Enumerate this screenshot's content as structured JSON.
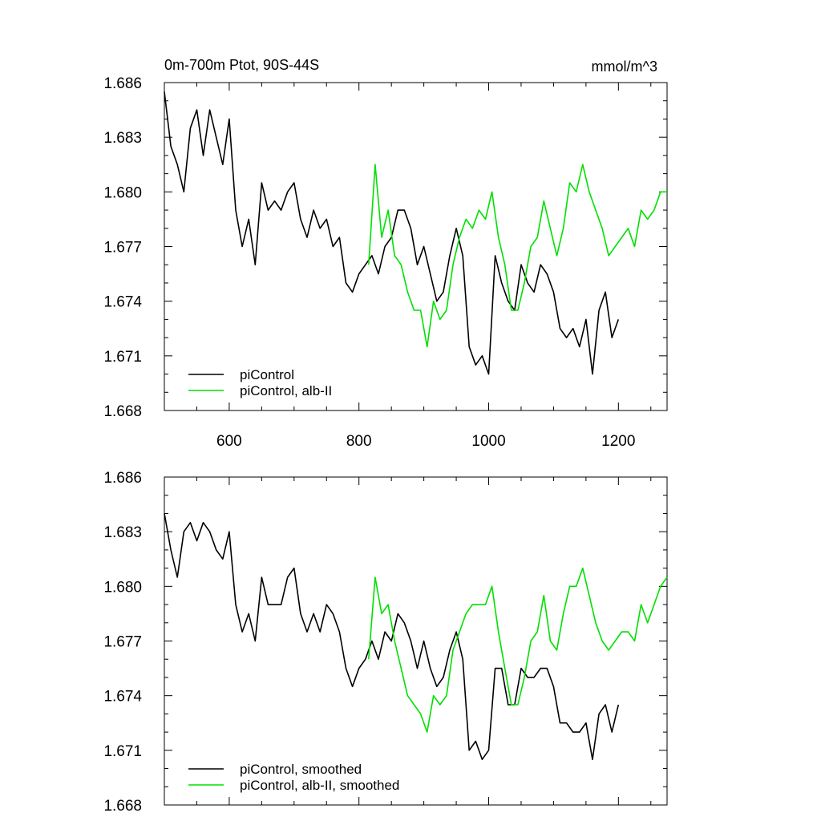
{
  "chart_data": [
    {
      "type": "line",
      "title": "0m-700m Ptot, 90S-44S",
      "units": "mmol/m^3",
      "xlim": [
        500,
        1275
      ],
      "ylim": [
        1.668,
        1.686
      ],
      "xticks": [
        600,
        800,
        1000,
        1200
      ],
      "yticks": [
        "1.668",
        "1.671",
        "1.674",
        "1.677",
        "1.680",
        "1.683",
        "1.686"
      ],
      "legend_position": "bottom-left",
      "series": [
        {
          "name": "piControl",
          "color": "#000000",
          "x": [
            500,
            510,
            520,
            530,
            540,
            550,
            560,
            570,
            580,
            590,
            600,
            610,
            620,
            630,
            640,
            650,
            660,
            670,
            680,
            690,
            700,
            710,
            720,
            730,
            740,
            750,
            760,
            770,
            780,
            790,
            800,
            810,
            820,
            830,
            840,
            850,
            860,
            870,
            880,
            890,
            900,
            910,
            920,
            930,
            940,
            950,
            960,
            970,
            980,
            990,
            1000,
            1010,
            1020,
            1030,
            1040,
            1050,
            1060,
            1070,
            1080,
            1090,
            1100,
            1110,
            1120,
            1130,
            1140,
            1150,
            1160,
            1170,
            1180,
            1190,
            1200
          ],
          "values": [
            1.6855,
            1.6825,
            1.6815,
            1.68,
            1.6835,
            1.6845,
            1.682,
            1.6845,
            1.683,
            1.6815,
            1.684,
            1.679,
            1.677,
            1.6785,
            1.676,
            1.6805,
            1.679,
            1.6795,
            1.679,
            1.68,
            1.6805,
            1.6785,
            1.6775,
            1.679,
            1.678,
            1.6785,
            1.677,
            1.6775,
            1.675,
            1.6745,
            1.6755,
            1.676,
            1.6765,
            1.6755,
            1.677,
            1.6775,
            1.679,
            1.679,
            1.678,
            1.676,
            1.677,
            1.6755,
            1.674,
            1.6745,
            1.6765,
            1.678,
            1.6765,
            1.6715,
            1.6705,
            1.671,
            1.67,
            1.6765,
            1.675,
            1.674,
            1.6735,
            1.676,
            1.675,
            1.6745,
            1.676,
            1.6755,
            1.6745,
            1.6725,
            1.672,
            1.6725,
            1.6715,
            1.673,
            1.67,
            1.6735,
            1.6745,
            1.672,
            1.673
          ]
        },
        {
          "name": "piControl, alb-II",
          "color": "#00e000",
          "x": [
            815,
            825,
            835,
            845,
            855,
            865,
            875,
            885,
            895,
            905,
            915,
            925,
            935,
            945,
            955,
            965,
            975,
            985,
            995,
            1005,
            1015,
            1025,
            1035,
            1045,
            1055,
            1065,
            1075,
            1085,
            1095,
            1105,
            1115,
            1125,
            1135,
            1145,
            1155,
            1165,
            1175,
            1185,
            1195,
            1205,
            1215,
            1225,
            1235,
            1245,
            1255,
            1265,
            1275
          ],
          "values": [
            1.676,
            1.6815,
            1.6775,
            1.679,
            1.6765,
            1.676,
            1.6745,
            1.6735,
            1.6735,
            1.6715,
            1.674,
            1.673,
            1.6735,
            1.676,
            1.6775,
            1.6785,
            1.678,
            1.679,
            1.6785,
            1.68,
            1.6775,
            1.676,
            1.6735,
            1.6735,
            1.675,
            1.677,
            1.6775,
            1.6795,
            1.678,
            1.6765,
            1.678,
            1.6805,
            1.68,
            1.6815,
            1.68,
            1.679,
            1.678,
            1.6765,
            1.677,
            1.6775,
            1.678,
            1.677,
            1.679,
            1.6785,
            1.679,
            1.68,
            1.68
          ]
        }
      ]
    },
    {
      "type": "line",
      "title": "",
      "xlim": [
        500,
        1275
      ],
      "ylim": [
        1.668,
        1.686
      ],
      "xticks": [
        600,
        800,
        1000,
        1200
      ],
      "yticks": [
        "1.668",
        "1.671",
        "1.674",
        "1.677",
        "1.680",
        "1.683",
        "1.686"
      ],
      "legend_position": "bottom-left",
      "series": [
        {
          "name": "piControl, smoothed",
          "color": "#000000",
          "x": [
            500,
            510,
            520,
            530,
            540,
            550,
            560,
            570,
            580,
            590,
            600,
            610,
            620,
            630,
            640,
            650,
            660,
            670,
            680,
            690,
            700,
            710,
            720,
            730,
            740,
            750,
            760,
            770,
            780,
            790,
            800,
            810,
            820,
            830,
            840,
            850,
            860,
            870,
            880,
            890,
            900,
            910,
            920,
            930,
            940,
            950,
            960,
            970,
            980,
            990,
            1000,
            1010,
            1020,
            1030,
            1040,
            1050,
            1060,
            1070,
            1080,
            1090,
            1100,
            1110,
            1120,
            1130,
            1140,
            1150,
            1160,
            1170,
            1180,
            1190,
            1200
          ],
          "values": [
            1.684,
            1.682,
            1.6805,
            1.683,
            1.6835,
            1.6825,
            1.6835,
            1.683,
            1.682,
            1.6815,
            1.683,
            1.679,
            1.6775,
            1.6785,
            1.677,
            1.6805,
            1.679,
            1.679,
            1.679,
            1.6805,
            1.681,
            1.6785,
            1.6775,
            1.6785,
            1.6775,
            1.679,
            1.6785,
            1.6775,
            1.6755,
            1.6745,
            1.6755,
            1.676,
            1.677,
            1.676,
            1.6775,
            1.677,
            1.6785,
            1.678,
            1.677,
            1.6755,
            1.677,
            1.6755,
            1.6745,
            1.675,
            1.6765,
            1.6775,
            1.676,
            1.671,
            1.6715,
            1.6705,
            1.671,
            1.6755,
            1.6755,
            1.6735,
            1.6735,
            1.6755,
            1.675,
            1.675,
            1.6755,
            1.6755,
            1.6745,
            1.6725,
            1.6725,
            1.672,
            1.672,
            1.6725,
            1.6705,
            1.673,
            1.6735,
            1.672,
            1.6735
          ]
        },
        {
          "name": "piControl, alb-II, smoothed",
          "color": "#00e000",
          "x": [
            815,
            825,
            835,
            845,
            855,
            865,
            875,
            885,
            895,
            905,
            915,
            925,
            935,
            945,
            955,
            965,
            975,
            985,
            995,
            1005,
            1015,
            1025,
            1035,
            1045,
            1055,
            1065,
            1075,
            1085,
            1095,
            1105,
            1115,
            1125,
            1135,
            1145,
            1155,
            1165,
            1175,
            1185,
            1195,
            1205,
            1215,
            1225,
            1235,
            1245,
            1255,
            1265,
            1275
          ],
          "values": [
            1.676,
            1.6805,
            1.6785,
            1.679,
            1.677,
            1.6755,
            1.674,
            1.6735,
            1.673,
            1.672,
            1.674,
            1.6735,
            1.674,
            1.6765,
            1.6775,
            1.6785,
            1.679,
            1.679,
            1.679,
            1.68,
            1.6775,
            1.6755,
            1.6735,
            1.6735,
            1.675,
            1.677,
            1.6775,
            1.6795,
            1.677,
            1.6765,
            1.6785,
            1.68,
            1.68,
            1.681,
            1.6795,
            1.678,
            1.677,
            1.6765,
            1.677,
            1.6775,
            1.6775,
            1.677,
            1.679,
            1.678,
            1.679,
            1.68,
            1.6805
          ]
        }
      ]
    }
  ]
}
